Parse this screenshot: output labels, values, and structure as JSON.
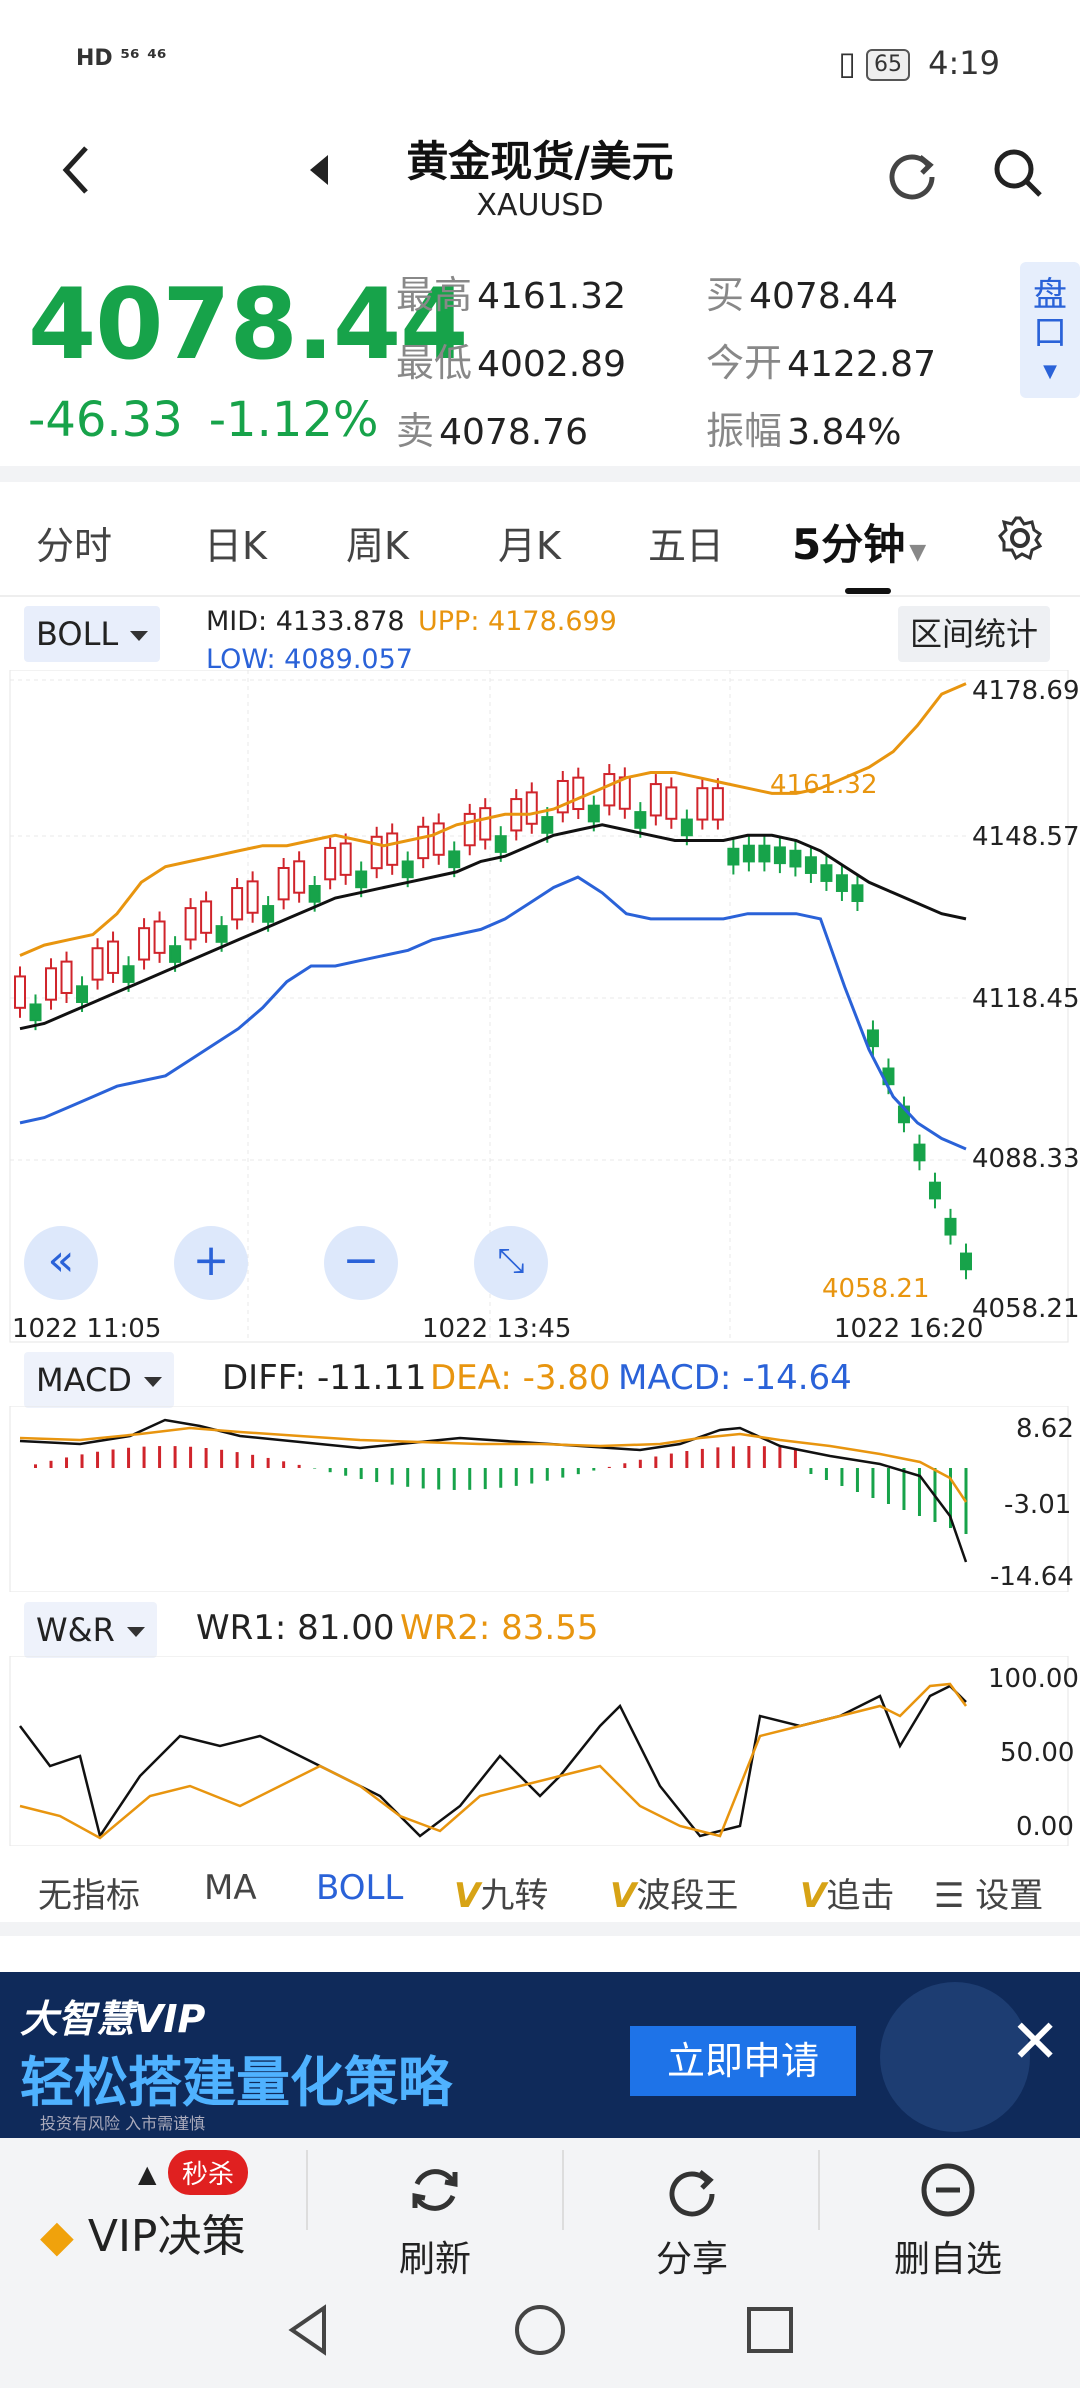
{
  "status_bar": {
    "left": "HD ⁵⁶ ⁴⁶",
    "battery": "65",
    "time": "4:19"
  },
  "header": {
    "title": "黄金现货/美元",
    "subtitle": "XAUUSD"
  },
  "quote": {
    "price": "4078.44",
    "change": "-46.33",
    "change_pct": "-1.12%",
    "high_label": "最高",
    "high": "4161.32",
    "low_label": "最低",
    "low": "4002.89",
    "sell_label": "卖",
    "sell": "4078.76",
    "buy_label": "买",
    "buy": "4078.44",
    "open_label": "今开",
    "open": "4122.87",
    "amp_label": "振幅",
    "amp": "3.84%",
    "pankou": "盘口"
  },
  "tabs": [
    "分时",
    "日K",
    "周K",
    "月K",
    "五日",
    "5分钟"
  ],
  "boll": {
    "selector": "BOLL",
    "mid_label": "MID:",
    "mid": "4133.878",
    "upp_label": "UPP:",
    "upp": "4178.699",
    "low_label": "LOW:",
    "low": "4089.057",
    "range_btn": "区间统计",
    "y_ticks": [
      "4178.69",
      "4148.57",
      "4118.45",
      "4088.33",
      "4058.21"
    ],
    "x_ticks": [
      "1022  11:05",
      "1022  13:45",
      "1022  16:20"
    ],
    "max_label": "4161.32",
    "min_label": "4058.21"
  },
  "macd": {
    "selector": "MACD",
    "diff_label": "DIFF:",
    "diff": "-11.11",
    "dea_label": "DEA:",
    "dea": "-3.80",
    "macd_label": "MACD:",
    "macd": "-14.64",
    "y_ticks": [
      "8.62",
      "-3.01",
      "-14.64"
    ]
  },
  "wr": {
    "selector": "W&R",
    "wr1_label": "WR1:",
    "wr1": "81.00",
    "wr2_label": "WR2:",
    "wr2": "83.55",
    "y_ticks": [
      "100.00",
      "50.00",
      "0.00"
    ]
  },
  "indicator_tabs": [
    "无指标",
    "MA",
    "BOLL",
    "九转",
    "波段王",
    "追击",
    "设置"
  ],
  "ad": {
    "brand": "大智慧VIP",
    "headline": "轻松搭建量化策略",
    "cta": "立即申请",
    "disclaimer": "投资有风险 入市需谨慎"
  },
  "bottom_nav": {
    "vip": "VIP决策",
    "vip_badge": "秒杀",
    "refresh": "刷新",
    "share": "分享",
    "remove": "删自选"
  },
  "colors": {
    "up": "#d0242b",
    "down": "#17a34a",
    "accent": "#2a62d8",
    "orange": "#e8950f",
    "mid": "#111111"
  },
  "chart_data": {
    "type": "candlestick",
    "series": [
      {
        "name": "UPP",
        "values": [
          4126,
          4128,
          4129,
          4130,
          4134,
          4140,
          4143,
          4144,
          4145,
          4146,
          4147,
          4147,
          4148,
          4149,
          4148,
          4147,
          4148,
          4149,
          4151,
          4152,
          4153,
          4153,
          4154,
          4156,
          4158,
          4160,
          4161,
          4161,
          4160,
          4159,
          4158,
          4157,
          4157,
          4158,
          4160,
          4162,
          4165,
          4170,
          4176,
          4178
        ]
      },
      {
        "name": "MID",
        "values": [
          4112,
          4113,
          4115,
          4117,
          4119,
          4121,
          4123,
          4125,
          4127,
          4129,
          4131,
          4133,
          4135,
          4137,
          4138,
          4139,
          4140,
          4141,
          4142,
          4144,
          4145,
          4147,
          4149,
          4150,
          4151,
          4150,
          4149,
          4148,
          4148,
          4148,
          4149,
          4149,
          4148,
          4146,
          4143,
          4140,
          4138,
          4136,
          4134,
          4133
        ]
      },
      {
        "name": "LOW",
        "values": [
          4094,
          4095,
          4097,
          4099,
          4101,
          4102,
          4103,
          4106,
          4109,
          4112,
          4116,
          4121,
          4124,
          4124,
          4125,
          4126,
          4127,
          4129,
          4130,
          4131,
          4133,
          4136,
          4139,
          4141,
          4138,
          4134,
          4133,
          4133,
          4133,
          4133,
          4134,
          4134,
          4134,
          4133,
          4120,
          4108,
          4099,
          4094,
          4091,
          4089
        ]
      }
    ],
    "ylim": [
      4058.21,
      4178.69
    ]
  }
}
